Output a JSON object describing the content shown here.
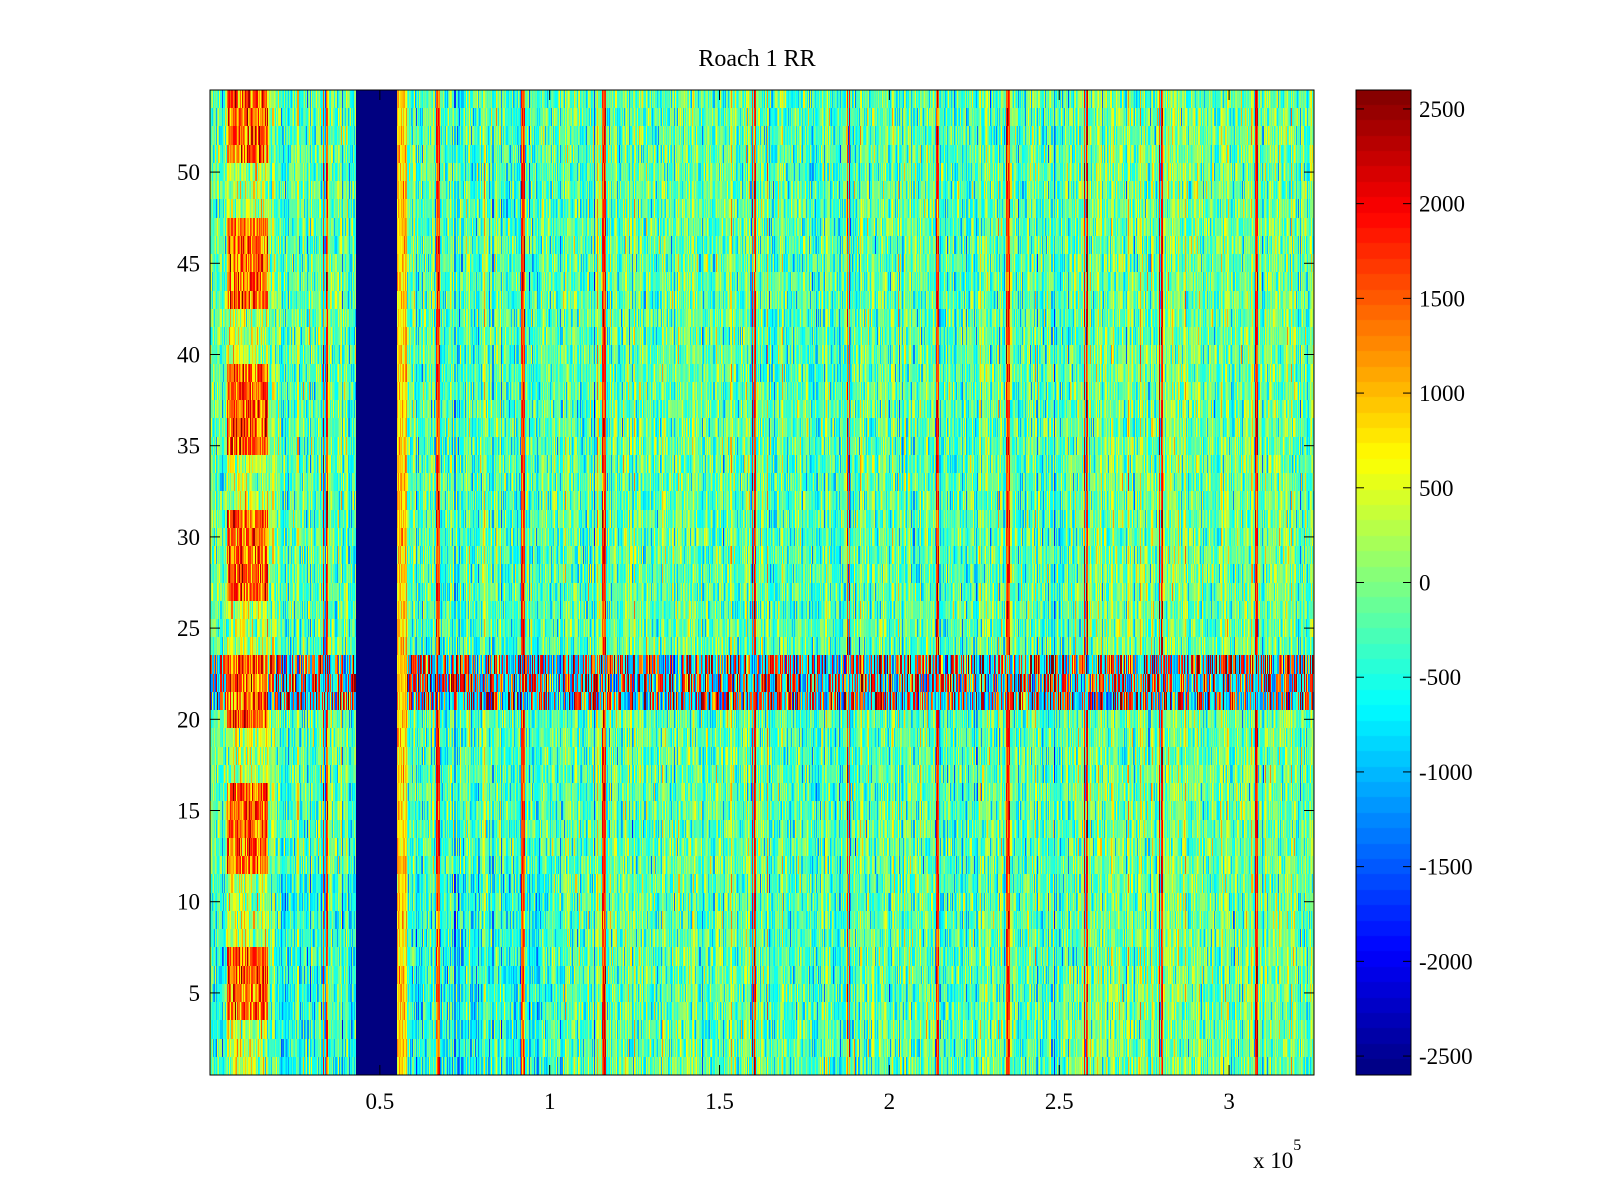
{
  "chart_data": {
    "type": "heatmap",
    "title": "Roach 1 RR",
    "xlabel": "",
    "ylabel": "",
    "x_exponent_label": "x 10",
    "x_exponent_power": "5",
    "xlim": [
      0,
      3.25
    ],
    "ylim": [
      0.5,
      54.5
    ],
    "x_ticks": [
      0.5,
      1,
      1.5,
      2,
      2.5,
      3
    ],
    "x_tick_labels": [
      "0.5",
      "1",
      "1.5",
      "2",
      "2.5",
      "3"
    ],
    "y_ticks": [
      5,
      10,
      15,
      20,
      25,
      30,
      35,
      40,
      45,
      50
    ],
    "y_tick_labels": [
      "5",
      "10",
      "15",
      "20",
      "25",
      "30",
      "35",
      "40",
      "45",
      "50"
    ],
    "colormap": "jet",
    "clim": [
      -2600,
      2600
    ],
    "colorbar_ticks": [
      2500,
      2000,
      1500,
      1000,
      500,
      0,
      -500,
      -1000,
      -1500,
      -2000,
      -2500
    ],
    "colorbar_tick_labels": [
      "2500",
      "2000",
      "1500",
      "1000",
      "500",
      "0",
      "-500",
      "-1000",
      "-1500",
      "-2000",
      "-2500"
    ],
    "features": {
      "low_band_x": [
        0.43,
        0.55
      ],
      "low_band_value": -2600,
      "noisy_row_band_y": [
        20.5,
        23.5
      ],
      "left_column_x": [
        0.05,
        0.17
      ],
      "left_column_hot_rows": [
        [
          52,
          54
        ],
        [
          44,
          46
        ],
        [
          36,
          38
        ],
        [
          28,
          30
        ],
        [
          21,
          22
        ],
        [
          13,
          15
        ],
        [
          5,
          6
        ]
      ],
      "vertical_streak_x": [
        0.34,
        0.67,
        0.92,
        1.16,
        1.6,
        1.88,
        2.14,
        2.35,
        2.58,
        2.8,
        3.08
      ]
    }
  }
}
